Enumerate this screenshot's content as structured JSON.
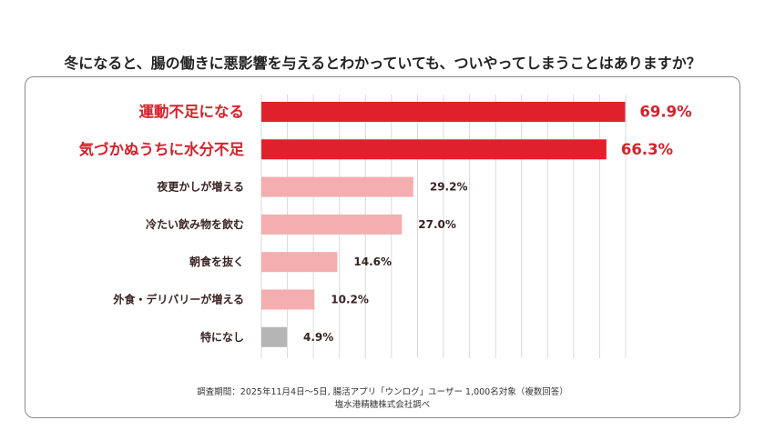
{
  "title": "冬になると、腸の働きに悪影響を与えるとわかっていても、ついやってしまうことはありますか？",
  "footnote": {
    "line1": "調査期間：2025年11月4日〜5日, 腸活アプリ「ウンログ」ユーザー 1,000名対象（複数回答）",
    "line2": "塩水港精糖株式会社調べ"
  },
  "colors": {
    "highlight": "#e0212b",
    "highlight_text": "#d7212a",
    "normal": "#f4aeb0",
    "none": "#b5b5b5",
    "label_text": "#3a2222",
    "grid": "#d9d9d9"
  },
  "chart_data": {
    "type": "bar",
    "orientation": "horizontal",
    "categories": [
      "運動不足になる",
      "気づかぬうちに水分不足",
      "夜更かしが増える",
      "冷たい飲み物を飲む",
      "朝食を抜く",
      "外食・デリバリーが増える",
      "特になし"
    ],
    "values": [
      69.9,
      66.3,
      29.2,
      27.0,
      14.6,
      10.2,
      4.9
    ],
    "value_labels": [
      "69.9%",
      "66.3%",
      "29.2%",
      "27.0%",
      "14.6%",
      "10.2%",
      "4.9%"
    ],
    "highlighted": [
      true,
      true,
      false,
      false,
      false,
      false,
      false
    ],
    "none_option": [
      false,
      false,
      false,
      false,
      false,
      false,
      true
    ],
    "xlim": [
      0,
      70
    ],
    "grid": true
  }
}
